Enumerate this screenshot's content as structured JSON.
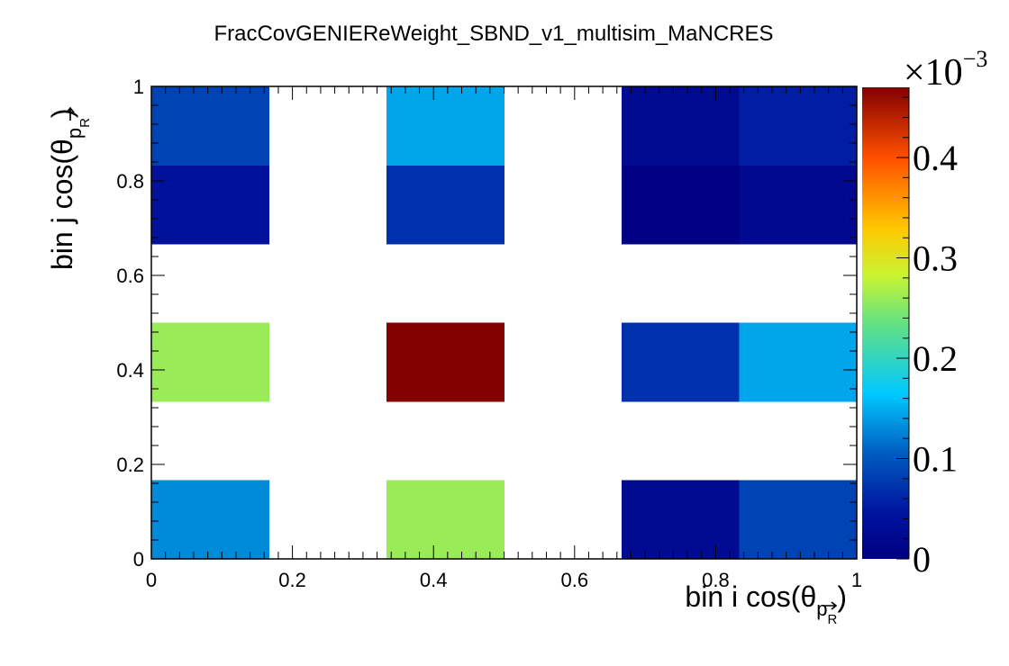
{
  "chart_data": {
    "type": "heatmap",
    "title": "FracCovGENIEReWeight_SBND_v1_multisim_MaNCRES",
    "xlabel": {
      "main": "bin i cos(θ",
      "sub": "p",
      "subsub": "R",
      "close": ")"
    },
    "ylabel": {
      "main": "bin j cos(θ",
      "sub": "p",
      "subsub": "R",
      "close": ")"
    },
    "xlim": [
      0,
      1
    ],
    "ylim": [
      0,
      1
    ],
    "nbins_x": 6,
    "nbins_y": 6,
    "x_ticks": [
      {
        "value": 0,
        "label": "0"
      },
      {
        "value": 0.2,
        "label": "0.2"
      },
      {
        "value": 0.4,
        "label": "0.4"
      },
      {
        "value": 0.6,
        "label": "0.6"
      },
      {
        "value": 0.8,
        "label": "0.8"
      },
      {
        "value": 1,
        "label": "1"
      }
    ],
    "y_ticks": [
      {
        "value": 0,
        "label": "0"
      },
      {
        "value": 0.2,
        "label": "0.2"
      },
      {
        "value": 0.4,
        "label": "0.4"
      },
      {
        "value": 0.6,
        "label": "0.6"
      },
      {
        "value": 0.8,
        "label": "0.8"
      },
      {
        "value": 1,
        "label": "1"
      }
    ],
    "cells_comment": "values in units of 1e-3; ix/iy are bin indices from bottom-left",
    "cells": [
      {
        "ix": 0,
        "iy": 0,
        "value": 0.13
      },
      {
        "ix": 2,
        "iy": 0,
        "value": 0.26
      },
      {
        "ix": 4,
        "iy": 0,
        "value": 0.025
      },
      {
        "ix": 5,
        "iy": 0,
        "value": 0.085
      },
      {
        "ix": 0,
        "iy": 2,
        "value": 0.26
      },
      {
        "ix": 2,
        "iy": 2,
        "value": 0.47
      },
      {
        "ix": 4,
        "iy": 2,
        "value": 0.07
      },
      {
        "ix": 5,
        "iy": 2,
        "value": 0.145
      },
      {
        "ix": 0,
        "iy": 4,
        "value": 0.04
      },
      {
        "ix": 2,
        "iy": 4,
        "value": 0.07
      },
      {
        "ix": 4,
        "iy": 4,
        "value": 0.003
      },
      {
        "ix": 5,
        "iy": 4,
        "value": 0.02
      },
      {
        "ix": 0,
        "iy": 5,
        "value": 0.085
      },
      {
        "ix": 2,
        "iy": 5,
        "value": 0.145
      },
      {
        "ix": 4,
        "iy": 5,
        "value": 0.025
      },
      {
        "ix": 5,
        "iy": 5,
        "value": 0.055
      }
    ],
    "colorbar": {
      "min": 0,
      "max": 0.47,
      "exponent_base": "×10",
      "exponent_power": "−3",
      "ticks": [
        {
          "value": 0,
          "label": "0"
        },
        {
          "value": 0.1,
          "label": "0.1"
        },
        {
          "value": 0.2,
          "label": "0.2"
        },
        {
          "value": 0.3,
          "label": "0.3"
        },
        {
          "value": 0.4,
          "label": "0.4"
        }
      ]
    }
  }
}
